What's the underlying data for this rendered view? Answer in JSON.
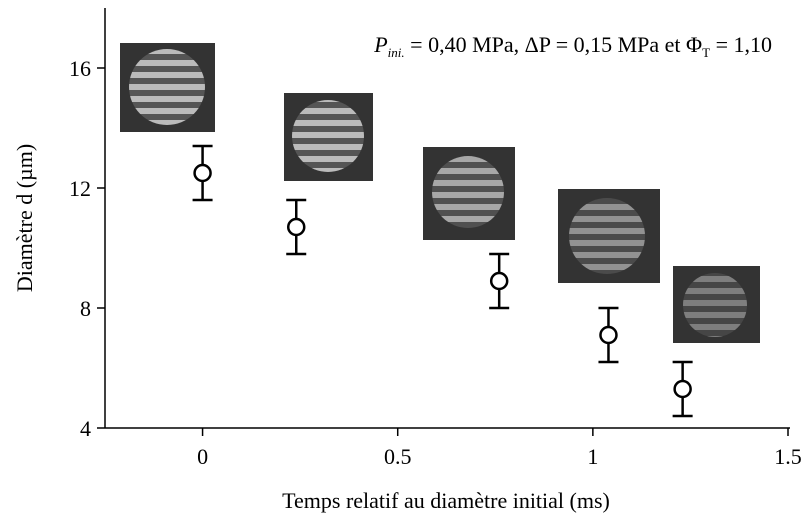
{
  "chart_data": {
    "type": "scatter",
    "x_label": "Temps relatif au diamètre initial (ms)",
    "y_label": "Diamètre d (µm)",
    "annotation": {
      "p": "P",
      "p_sub": "ini.",
      "middle": " = 0,40 MPa, ΔP = 0,15 MPa et Φ",
      "phi_sub": "T",
      "end": " = 1,10"
    },
    "x": [
      0,
      0.24,
      0.76,
      1.04,
      1.23
    ],
    "values": [
      12.5,
      10.7,
      8.9,
      7.1,
      5.3
    ],
    "errors": [
      0.9,
      0.9,
      0.9,
      0.9,
      0.9
    ],
    "color": "#000000",
    "xlim": [
      -0.25,
      1.5
    ],
    "xticks": [
      0,
      0.5,
      1,
      1.5
    ],
    "ylim": [
      4,
      18
    ],
    "yticks": [
      4,
      8,
      12,
      16
    ]
  }
}
